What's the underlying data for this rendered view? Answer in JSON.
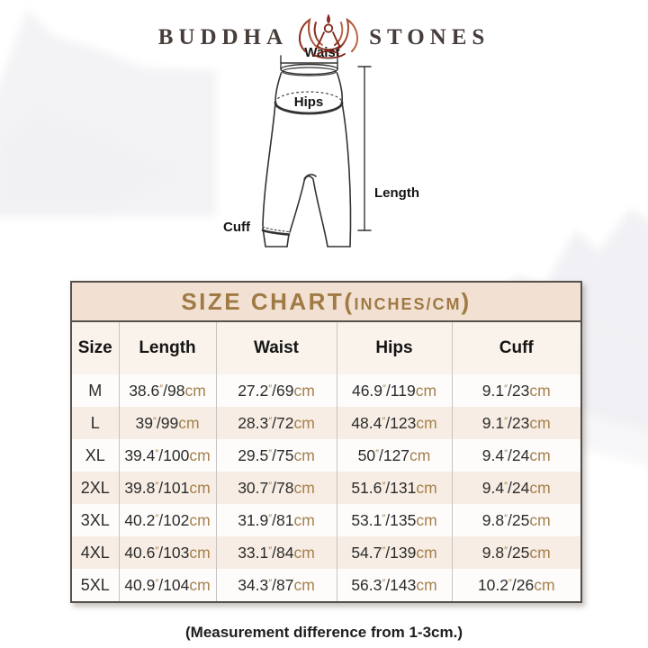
{
  "brand": {
    "left": "BUDDHA",
    "right": "STONES",
    "icon": "lotus-meditation-icon"
  },
  "diagram": {
    "waist_label": "Waist",
    "hips_label": "Hips",
    "length_label": "Length",
    "cuff_label": "Cuff"
  },
  "size_chart": {
    "title": {
      "main": "SIZE CHART(",
      "sub": "INCHES/CM",
      "close": ")"
    },
    "columns": [
      "Size",
      "Length",
      "Waist",
      "Hips",
      "Cuff"
    ],
    "measure_keys": [
      "length",
      "waist",
      "hips",
      "cuff"
    ],
    "unit_inch_mark": "″",
    "separator": "/",
    "unit_cm": "cm",
    "rows": [
      {
        "size": "M",
        "length": {
          "in": "38.6",
          "cm": "98"
        },
        "waist": {
          "in": "27.2",
          "cm": "69"
        },
        "hips": {
          "in": "46.9",
          "cm": "119"
        },
        "cuff": {
          "in": "9.1",
          "cm": "23"
        }
      },
      {
        "size": "L",
        "length": {
          "in": "39",
          "cm": "99"
        },
        "waist": {
          "in": "28.3",
          "cm": "72"
        },
        "hips": {
          "in": "48.4",
          "cm": "123"
        },
        "cuff": {
          "in": "9.1",
          "cm": "23"
        }
      },
      {
        "size": "XL",
        "length": {
          "in": "39.4",
          "cm": "100"
        },
        "waist": {
          "in": "29.5",
          "cm": "75"
        },
        "hips": {
          "in": "50",
          "cm": "127"
        },
        "cuff": {
          "in": "9.4",
          "cm": "24"
        }
      },
      {
        "size": "2XL",
        "length": {
          "in": "39.8",
          "cm": "101"
        },
        "waist": {
          "in": "30.7",
          "cm": "78"
        },
        "hips": {
          "in": "51.6",
          "cm": "131"
        },
        "cuff": {
          "in": "9.4",
          "cm": "24"
        }
      },
      {
        "size": "3XL",
        "length": {
          "in": "40.2",
          "cm": "102"
        },
        "waist": {
          "in": "31.9",
          "cm": "81"
        },
        "hips": {
          "in": "53.1",
          "cm": "135"
        },
        "cuff": {
          "in": "9.8",
          "cm": "25"
        }
      },
      {
        "size": "4XL",
        "length": {
          "in": "40.6",
          "cm": "103"
        },
        "waist": {
          "in": "33.1",
          "cm": "84"
        },
        "hips": {
          "in": "54.7",
          "cm": "139"
        },
        "cuff": {
          "in": "9.8",
          "cm": "25"
        }
      },
      {
        "size": "5XL",
        "length": {
          "in": "40.9",
          "cm": "104"
        },
        "waist": {
          "in": "34.3",
          "cm": "87"
        },
        "hips": {
          "in": "56.3",
          "cm": "143"
        },
        "cuff": {
          "in": "10.2",
          "cm": "26"
        }
      }
    ]
  },
  "footnote": "(Measurement difference from 1-3cm.)",
  "colors": {
    "band_bg": "#f2e0d2",
    "title_text": "#9f7a44",
    "unit_text": "#a5804d",
    "row_alt_bg": "#f7ede4",
    "table_border": "#56504b",
    "logo_text": "#473d3a",
    "lotus_dark": "#8a2a1c",
    "lotus_light": "#c06a45"
  }
}
